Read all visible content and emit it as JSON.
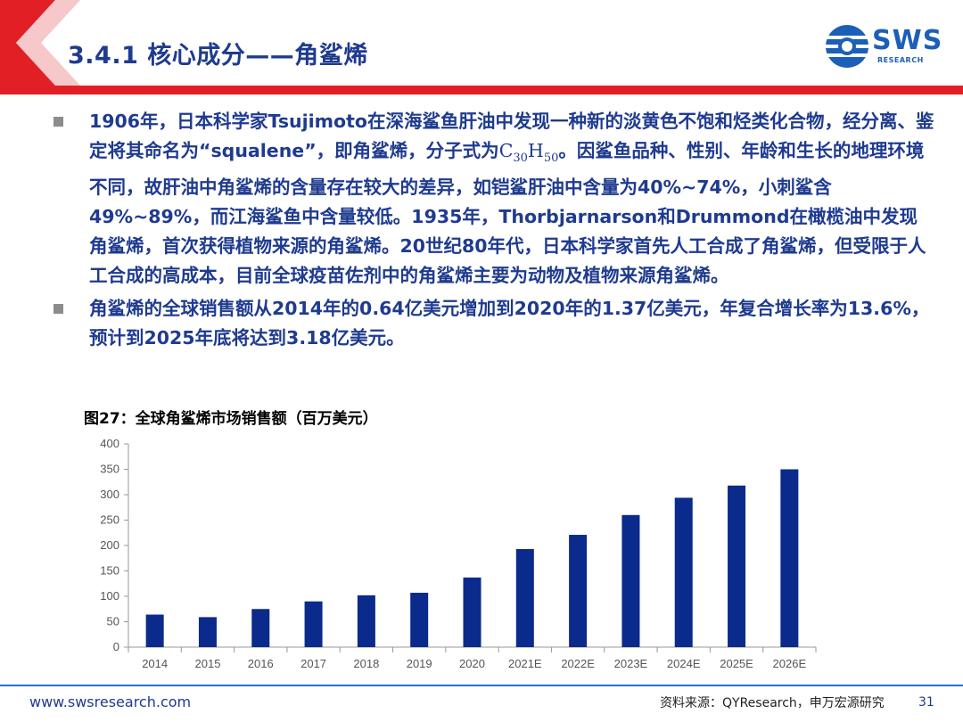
{
  "header": {
    "title": "3.4.1 核心成分——角鲨烯",
    "logo_text": "SWS",
    "logo_sub": "RESEARCH"
  },
  "bullets": [
    {
      "text_before": "1906年，日本科学家Tsujimoto在深海鲨鱼肝油中发现一种新的淡黄色不饱和烃类化合物，经分离、鉴定将其命名为“squalene”，即角鲨烯，分子式为",
      "formula_c": "C",
      "formula_c_sub": "30",
      "formula_h": "H",
      "formula_h_sub": "50",
      "text_after": "。因鲨鱼品种、性别、年龄和生长的地理环境不同，故肝油中角鲨烯的含量存在较大的差异，如铠鲨肝油中含量为40%~74%，小刺鲨含49%~89%，而江海鲨鱼中含量较低。1935年，Thorbjarnarson和Drummond在橄榄油中发现角鲨烯，首次获得植物来源的角鲨烯。20世纪80年代，日本科学家首先人工合成了角鲨烯，但受限于人工合成的高成本，目前全球疫苗佐剂中的角鲨烯主要为动物及植物来源角鲨烯。"
    },
    {
      "text": "角鲨烯的全球销售额从2014年的0.64亿美元增加到2020年的1.37亿美元，年复合增长率为13.6%，预计到2025年底将达到3.18亿美元。"
    }
  ],
  "figure": {
    "title": "图27：全球角鲨烯市场销售额（百万美元）"
  },
  "chart_data": {
    "type": "bar",
    "title": "",
    "xlabel": "",
    "ylabel": "",
    "categories": [
      "2014",
      "2015",
      "2016",
      "2017",
      "2018",
      "2019",
      "2020",
      "2021E",
      "2022E",
      "2023E",
      "2024E",
      "2025E",
      "2026E"
    ],
    "values": [
      64,
      59,
      75,
      90,
      102,
      107,
      137,
      193,
      221,
      260,
      294,
      318,
      350
    ],
    "ylim": [
      0,
      400
    ],
    "yticks": [
      0,
      50,
      100,
      150,
      200,
      250,
      300,
      350,
      400
    ],
    "grid": false,
    "bar_color": "#0a2a8c"
  },
  "footer": {
    "url": "www.swsresearch.com",
    "source": "资料来源：QYResearch，申万宏源研究",
    "page": "31"
  }
}
